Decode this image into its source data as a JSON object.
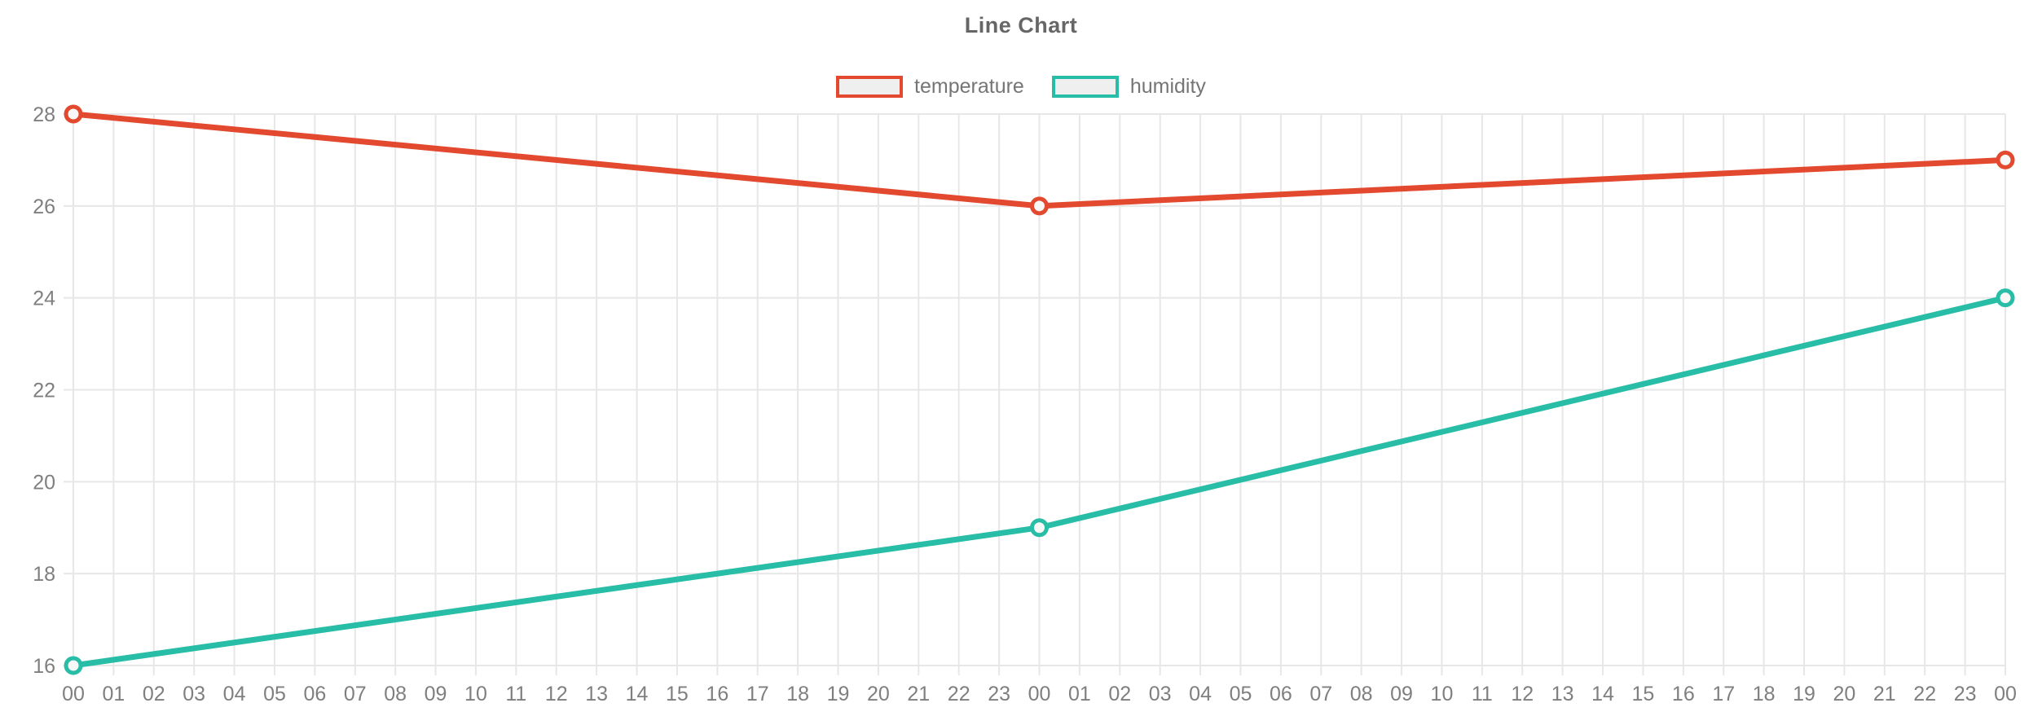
{
  "title": "Line Chart",
  "legend": {
    "items": [
      {
        "label": "temperature",
        "color": "#e2492f"
      },
      {
        "label": "humidity",
        "color": "#28bda6"
      }
    ]
  },
  "chart_data": {
    "type": "line",
    "title": "Line Chart",
    "x_labels": [
      "00",
      "01",
      "02",
      "03",
      "04",
      "05",
      "06",
      "07",
      "08",
      "09",
      "10",
      "11",
      "12",
      "13",
      "14",
      "15",
      "16",
      "17",
      "18",
      "19",
      "20",
      "21",
      "22",
      "23",
      "00",
      "01",
      "02",
      "03",
      "04",
      "05",
      "06",
      "07",
      "08",
      "09",
      "10",
      "11",
      "12",
      "13",
      "14",
      "15",
      "16",
      "17",
      "18",
      "19",
      "20",
      "21",
      "22",
      "23",
      "00"
    ],
    "xlabel": "",
    "ylabel": "",
    "y_ticks": [
      16,
      18,
      20,
      22,
      24,
      26,
      28
    ],
    "ylim": [
      16,
      28
    ],
    "grid": true,
    "legend_position": "top",
    "marker": "open-circle",
    "series": [
      {
        "name": "temperature",
        "color": "#e2492f",
        "points": [
          {
            "x": 0,
            "y": 28
          },
          {
            "x": 24,
            "y": 26
          },
          {
            "x": 48,
            "y": 27
          }
        ]
      },
      {
        "name": "humidity",
        "color": "#28bda6",
        "points": [
          {
            "x": 0,
            "y": 16
          },
          {
            "x": 24,
            "y": 19
          },
          {
            "x": 48,
            "y": 24
          }
        ]
      }
    ]
  },
  "style": {
    "background": "#ffffff",
    "grid_color": "#e7e7e7",
    "axis_text_color": "#7f7f7f",
    "title_color": "#666666",
    "legend_text_color": "#757575",
    "legend_fill": "#efefef",
    "marker_fill": "#f7f7f7"
  }
}
